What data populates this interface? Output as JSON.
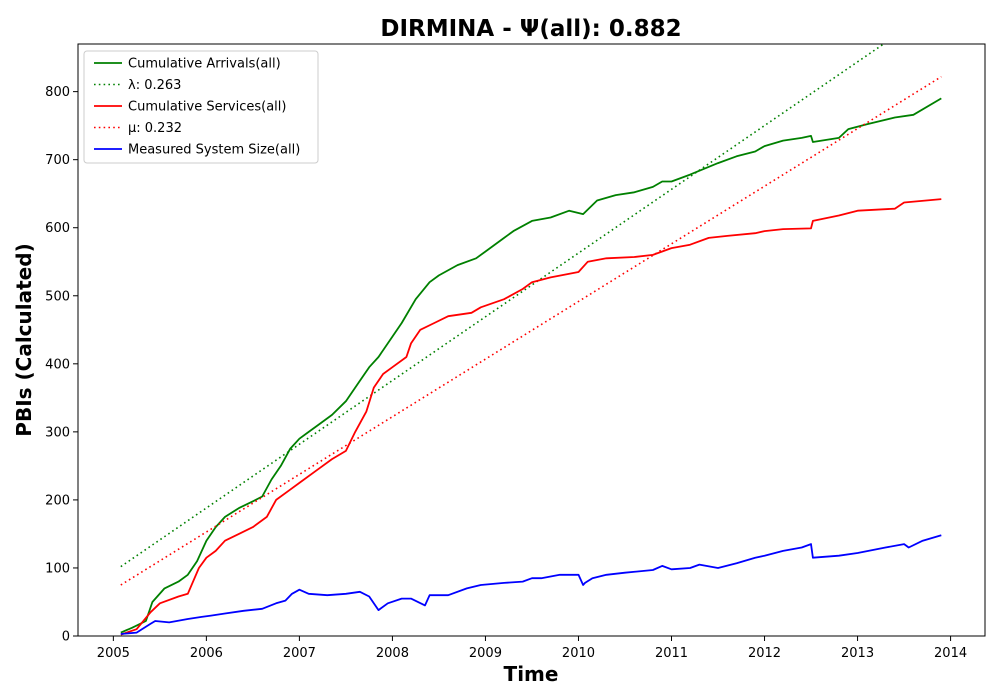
{
  "chart_data": {
    "type": "line",
    "title": "DIRMINA -  Ψ(all): 0.882",
    "xlabel": "Time",
    "ylabel": "PBIs (Calculated)",
    "xlim": [
      2004.62,
      2014.37
    ],
    "ylim": [
      0,
      870
    ],
    "xticks": [
      2005,
      2006,
      2007,
      2008,
      2009,
      2010,
      2011,
      2012,
      2013,
      2014
    ],
    "xtick_labels": [
      "2005",
      "2006",
      "2007",
      "2008",
      "2009",
      "2010",
      "2011",
      "2012",
      "2013",
      "2014"
    ],
    "yticks": [
      0,
      100,
      200,
      300,
      400,
      500,
      600,
      700,
      800
    ],
    "ytick_labels": [
      "0",
      "100",
      "200",
      "300",
      "400",
      "500",
      "600",
      "700",
      "800"
    ],
    "grid": false,
    "legend_position": "top-left",
    "series": [
      {
        "name": "Cumulative Arrivals(all)",
        "color": "#008000",
        "style": "solid",
        "x": [
          2005.08,
          2005.2,
          2005.35,
          2005.42,
          2005.55,
          2005.7,
          2005.8,
          2005.9,
          2006.0,
          2006.1,
          2006.2,
          2006.35,
          2006.5,
          2006.6,
          2006.7,
          2006.8,
          2006.9,
          2007.0,
          2007.1,
          2007.2,
          2007.35,
          2007.5,
          2007.6,
          2007.75,
          2007.85,
          2008.0,
          2008.1,
          2008.25,
          2008.4,
          2008.5,
          2008.7,
          2008.9,
          2009.0,
          2009.2,
          2009.3,
          2009.5,
          2009.7,
          2009.9,
          2010.05,
          2010.2,
          2010.4,
          2010.6,
          2010.8,
          2010.9,
          2011.0,
          2011.2,
          2011.5,
          2011.7,
          2011.9,
          2012.0,
          2012.2,
          2012.4,
          2012.5,
          2012.52,
          2012.8,
          2012.9,
          2013.1,
          2013.4,
          2013.6,
          2013.9
        ],
        "y": [
          5,
          12,
          22,
          50,
          70,
          80,
          90,
          110,
          140,
          160,
          175,
          188,
          198,
          205,
          230,
          250,
          275,
          290,
          300,
          310,
          325,
          345,
          365,
          395,
          410,
          440,
          460,
          495,
          520,
          530,
          545,
          555,
          565,
          585,
          595,
          610,
          615,
          625,
          620,
          640,
          648,
          652,
          660,
          668,
          668,
          678,
          695,
          705,
          712,
          720,
          728,
          732,
          735,
          726,
          732,
          745,
          752,
          762,
          766,
          790
        ],
        "values": [
          5,
          12,
          22,
          50,
          70,
          80,
          90,
          110,
          140,
          160,
          175,
          188,
          198,
          205,
          230,
          250,
          275,
          290,
          300,
          310,
          325,
          345,
          365,
          395,
          410,
          440,
          460,
          495,
          520,
          530,
          545,
          555,
          565,
          585,
          595,
          610,
          615,
          625,
          620,
          640,
          648,
          652,
          660,
          668,
          668,
          678,
          695,
          705,
          712,
          720,
          728,
          732,
          735,
          726,
          732,
          745,
          752,
          762,
          766,
          790
        ]
      },
      {
        "name": "λ: 0.263",
        "color": "#008000",
        "style": "dotted",
        "x": [
          2005.08,
          2013.28
        ],
        "y": [
          102,
          870
        ],
        "values": [
          102,
          870
        ]
      },
      {
        "name": "Cumulative Services(all)",
        "color": "#ff0000",
        "style": "solid",
        "x": [
          2005.08,
          2005.25,
          2005.4,
          2005.5,
          2005.7,
          2005.8,
          2005.92,
          2006.0,
          2006.1,
          2006.2,
          2006.35,
          2006.5,
          2006.65,
          2006.75,
          2006.9,
          2007.0,
          2007.2,
          2007.35,
          2007.5,
          2007.6,
          2007.72,
          2007.8,
          2007.9,
          2008.0,
          2008.15,
          2008.2,
          2008.3,
          2008.45,
          2008.6,
          2008.85,
          2008.95,
          2009.2,
          2009.4,
          2009.5,
          2009.7,
          2010.0,
          2010.1,
          2010.3,
          2010.6,
          2010.8,
          2010.9,
          2011.0,
          2011.2,
          2011.4,
          2011.6,
          2011.9,
          2012.0,
          2012.2,
          2012.5,
          2012.52,
          2012.8,
          2013.0,
          2013.4,
          2013.5,
          2013.9
        ],
        "y": [
          2,
          10,
          35,
          48,
          58,
          62,
          100,
          115,
          125,
          140,
          150,
          160,
          175,
          200,
          215,
          225,
          245,
          260,
          272,
          300,
          330,
          365,
          385,
          395,
          410,
          430,
          450,
          460,
          470,
          475,
          483,
          495,
          510,
          520,
          527,
          535,
          550,
          555,
          557,
          560,
          565,
          570,
          575,
          585,
          588,
          592,
          595,
          598,
          599,
          610,
          618,
          625,
          628,
          637,
          642
        ],
        "values": [
          2,
          10,
          35,
          48,
          58,
          62,
          100,
          115,
          125,
          140,
          150,
          160,
          175,
          200,
          215,
          225,
          245,
          260,
          272,
          300,
          330,
          365,
          385,
          395,
          410,
          430,
          450,
          460,
          470,
          475,
          483,
          495,
          510,
          520,
          527,
          535,
          550,
          555,
          557,
          560,
          565,
          570,
          575,
          585,
          588,
          592,
          595,
          598,
          599,
          610,
          618,
          625,
          628,
          637,
          642
        ]
      },
      {
        "name": "μ: 0.232",
        "color": "#ff0000",
        "style": "dotted",
        "x": [
          2005.08,
          2013.9
        ],
        "y": [
          75,
          822
        ],
        "values": [
          75,
          822
        ]
      },
      {
        "name": "Measured System Size(all)",
        "color": "#0000ff",
        "style": "solid",
        "x": [
          2005.08,
          2005.25,
          2005.4,
          2005.45,
          2005.6,
          2005.8,
          2005.95,
          2006.05,
          2006.2,
          2006.4,
          2006.6,
          2006.75,
          2006.85,
          2006.92,
          2007.0,
          2007.1,
          2007.3,
          2007.5,
          2007.65,
          2007.75,
          2007.85,
          2007.95,
          2008.1,
          2008.2,
          2008.35,
          2008.4,
          2008.6,
          2008.8,
          2008.95,
          2009.2,
          2009.4,
          2009.5,
          2009.6,
          2009.8,
          2010.0,
          2010.05,
          2010.07,
          2010.15,
          2010.3,
          2010.5,
          2010.8,
          2010.9,
          2011.0,
          2011.2,
          2011.3,
          2011.5,
          2011.7,
          2011.9,
          2012.0,
          2012.2,
          2012.4,
          2012.5,
          2012.52,
          2012.8,
          2013.0,
          2013.3,
          2013.5,
          2013.55,
          2013.7,
          2013.9
        ],
        "y": [
          3,
          5,
          18,
          22,
          20,
          25,
          28,
          30,
          33,
          37,
          40,
          48,
          52,
          62,
          68,
          62,
          60,
          62,
          65,
          58,
          38,
          48,
          55,
          55,
          45,
          60,
          60,
          70,
          75,
          78,
          80,
          85,
          85,
          90,
          90,
          75,
          78,
          85,
          90,
          93,
          97,
          103,
          98,
          100,
          105,
          100,
          107,
          115,
          118,
          125,
          130,
          135,
          115,
          118,
          122,
          130,
          135,
          130,
          140,
          148
        ],
        "values": [
          3,
          5,
          18,
          22,
          20,
          25,
          28,
          30,
          33,
          37,
          40,
          48,
          52,
          62,
          68,
          62,
          60,
          62,
          65,
          58,
          38,
          48,
          55,
          55,
          45,
          60,
          60,
          70,
          75,
          78,
          80,
          85,
          85,
          90,
          90,
          75,
          78,
          85,
          90,
          93,
          97,
          103,
          98,
          100,
          105,
          100,
          107,
          115,
          118,
          125,
          130,
          135,
          115,
          118,
          122,
          130,
          135,
          130,
          140,
          148
        ]
      }
    ]
  }
}
